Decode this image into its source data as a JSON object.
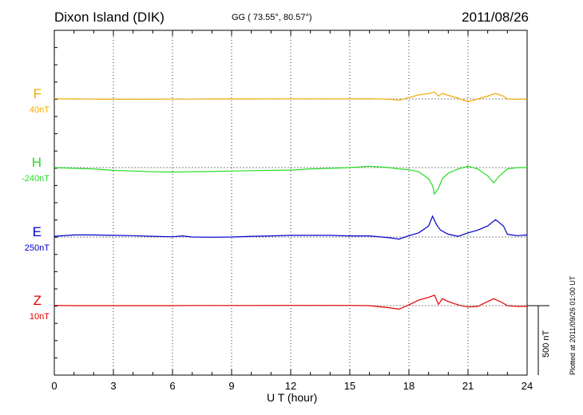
{
  "header": {
    "station": "Dixon Island (DIK)",
    "coords": "GG ( 73.55°,  80.57°)",
    "date": "2011/08/26"
  },
  "footer": {
    "xlabel": "U T (hour)",
    "plotted": "Plotted at 2011/09/26 01:00 UT",
    "scale_bar_label": "500 nT"
  },
  "channels": [
    {
      "name": "F",
      "offset_label": "40nT",
      "color": "#f2a900"
    },
    {
      "name": "H",
      "offset_label": "-240nT",
      "color": "#22dd22"
    },
    {
      "name": "E",
      "offset_label": "250nT",
      "color": "#0000cc"
    },
    {
      "name": "Z",
      "offset_label": "10nT",
      "color": "#e00000"
    }
  ],
  "chart_data": {
    "type": "line",
    "title": "Dixon Island (DIK)",
    "xlabel": "U T (hour)",
    "ylabel": "",
    "xlim": [
      0,
      24
    ],
    "xticks": [
      0,
      3,
      6,
      9,
      12,
      15,
      18,
      21,
      24
    ],
    "xtick_labels": [
      "0",
      "3",
      "6",
      "9",
      "12",
      "15",
      "18",
      "21",
      "24"
    ],
    "grid": true,
    "scale_bar_nT": 500,
    "series": [
      {
        "name": "F",
        "unit": "nT",
        "x": [
          0,
          1,
          2,
          3,
          4,
          5,
          6,
          7,
          8,
          9,
          10,
          11,
          12,
          13,
          14,
          15,
          16,
          17,
          17.5,
          18,
          18.5,
          19,
          19.3,
          19.5,
          19.7,
          20,
          20.5,
          21,
          21.5,
          22,
          22.4,
          22.8,
          23,
          23.5,
          24
        ],
        "values": [
          42,
          40,
          39,
          38,
          38,
          38,
          39,
          39,
          40,
          40,
          40,
          41,
          41,
          41,
          41,
          41,
          42,
          38,
          30,
          50,
          70,
          78,
          90,
          60,
          80,
          66,
          45,
          20,
          40,
          60,
          80,
          60,
          40,
          38,
          38
        ]
      },
      {
        "name": "H",
        "unit": "nT",
        "x": [
          0,
          1,
          2,
          3,
          4,
          5,
          6,
          7,
          8,
          9,
          10,
          11,
          12,
          13,
          14,
          15,
          16,
          17,
          17.5,
          18,
          18.5,
          19,
          19.2,
          19.3,
          19.5,
          19.7,
          20,
          20.5,
          21,
          21.5,
          22,
          22.3,
          22.6,
          23,
          23.5,
          24
        ],
        "values": [
          -240,
          -245,
          -250,
          -260,
          -265,
          -270,
          -272,
          -270,
          -268,
          -265,
          -262,
          -260,
          -258,
          -250,
          -245,
          -240,
          -230,
          -240,
          -250,
          -255,
          -270,
          -320,
          -370,
          -430,
          -390,
          -320,
          -280,
          -250,
          -230,
          -250,
          -300,
          -350,
          -300,
          -250,
          -240,
          -240
        ]
      },
      {
        "name": "E",
        "unit": "nT",
        "x": [
          0,
          1,
          2,
          3,
          4,
          5,
          6,
          6.5,
          7,
          8,
          9,
          10,
          11,
          12,
          13,
          14,
          15,
          16,
          17,
          17.5,
          18,
          18.5,
          19,
          19.2,
          19.4,
          19.6,
          20,
          20.5,
          21,
          21.5,
          22,
          22.4,
          22.8,
          23,
          23.5,
          24
        ],
        "values": [
          255,
          265,
          265,
          262,
          260,
          255,
          252,
          258,
          250,
          248,
          250,
          255,
          258,
          262,
          262,
          262,
          258,
          258,
          245,
          235,
          260,
          280,
          330,
          400,
          340,
          300,
          270,
          255,
          280,
          300,
          330,
          375,
          330,
          270,
          260,
          265
        ]
      },
      {
        "name": "Z",
        "unit": "nT",
        "x": [
          0,
          1,
          2,
          3,
          4,
          5,
          6,
          7,
          8,
          9,
          10,
          11,
          12,
          13,
          14,
          15,
          16,
          17,
          17.5,
          18,
          18.5,
          19,
          19.3,
          19.5,
          19.7,
          20,
          20.5,
          21,
          21.5,
          22,
          22.3,
          22.7,
          23,
          23.5,
          24
        ],
        "values": [
          12,
          10,
          10,
          10,
          10,
          10,
          10,
          11,
          11,
          11,
          11,
          12,
          12,
          12,
          12,
          12,
          10,
          -5,
          -15,
          15,
          50,
          70,
          85,
          20,
          60,
          40,
          15,
          0,
          5,
          40,
          60,
          35,
          10,
          5,
          5
        ]
      }
    ]
  }
}
